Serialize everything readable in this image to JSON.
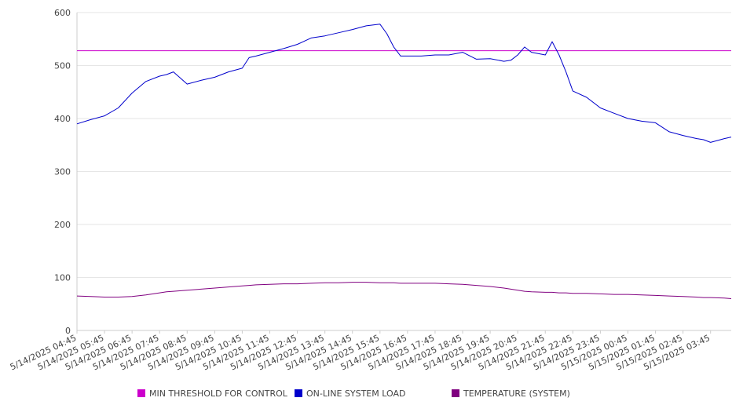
{
  "chart_data": {
    "type": "line",
    "ylim": [
      0,
      600
    ],
    "yticks": [
      0,
      100,
      200,
      300,
      400,
      500,
      600
    ],
    "grid": {
      "horizontal": true,
      "vertical": false
    },
    "legend_position": "bottom",
    "x_tick_labels": [
      "5/14/2025 04:45",
      "5/14/2025 05:45",
      "5/14/2025 06:45",
      "5/14/2025 07:45",
      "5/14/2025 08:45",
      "5/14/2025 09:45",
      "5/14/2025 10:45",
      "5/14/2025 11:45",
      "5/14/2025 12:45",
      "5/14/2025 13:45",
      "5/14/2025 14:45",
      "5/14/2025 15:45",
      "5/14/2025 16:45",
      "5/14/2025 17:45",
      "5/14/2025 18:45",
      "5/14/2025 19:45",
      "5/14/2025 20:45",
      "5/14/2025 21:45",
      "5/14/2025 22:45",
      "5/14/2025 23:45",
      "5/15/2025 00:45",
      "5/15/2025 01:45",
      "5/15/2025 02:45",
      "5/15/2025 03:45"
    ],
    "x": [
      "5/14/2025 04:45",
      "5/14/2025 05:15",
      "5/14/2025 05:45",
      "5/14/2025 06:15",
      "5/14/2025 06:45",
      "5/14/2025 07:15",
      "5/14/2025 07:45",
      "5/14/2025 08:00",
      "5/14/2025 08:15",
      "5/14/2025 08:45",
      "5/14/2025 09:15",
      "5/14/2025 09:45",
      "5/14/2025 10:15",
      "5/14/2025 10:45",
      "5/14/2025 11:00",
      "5/14/2025 11:15",
      "5/14/2025 11:45",
      "5/14/2025 12:15",
      "5/14/2025 12:45",
      "5/14/2025 13:15",
      "5/14/2025 13:45",
      "5/14/2025 14:15",
      "5/14/2025 14:45",
      "5/14/2025 15:15",
      "5/14/2025 15:45",
      "5/14/2025 16:00",
      "5/14/2025 16:15",
      "5/14/2025 16:30",
      "5/14/2025 16:45",
      "5/14/2025 17:15",
      "5/14/2025 17:45",
      "5/14/2025 18:15",
      "5/14/2025 18:45",
      "5/14/2025 19:15",
      "5/14/2025 19:45",
      "5/14/2025 20:15",
      "5/14/2025 20:30",
      "5/14/2025 20:45",
      "5/14/2025 21:00",
      "5/14/2025 21:15",
      "5/14/2025 21:45",
      "5/14/2025 22:00",
      "5/14/2025 22:15",
      "5/14/2025 22:30",
      "5/14/2025 22:45",
      "5/14/2025 23:15",
      "5/14/2025 23:45",
      "5/15/2025 00:15",
      "5/15/2025 00:45",
      "5/15/2025 01:15",
      "5/15/2025 01:45",
      "5/15/2025 02:15",
      "5/15/2025 02:45",
      "5/15/2025 03:15",
      "5/15/2025 03:30",
      "5/15/2025 03:45",
      "5/15/2025 04:15",
      "5/15/2025 04:30"
    ],
    "series": [
      {
        "name": "MIN THRESHOLD FOR CONTROL",
        "color": "#cc00cc",
        "values": [
          528,
          528,
          528,
          528,
          528,
          528,
          528,
          528,
          528,
          528,
          528,
          528,
          528,
          528,
          528,
          528,
          528,
          528,
          528,
          528,
          528,
          528,
          528,
          528,
          528,
          528,
          528,
          528,
          528,
          528,
          528,
          528,
          528,
          528,
          528,
          528,
          528,
          528,
          528,
          528,
          528,
          528,
          528,
          528,
          528,
          528,
          528,
          528,
          528,
          528,
          528,
          528,
          528,
          528,
          528,
          528,
          528,
          528
        ]
      },
      {
        "name": "ON-LINE SYSTEM LOAD",
        "color": "#0000cc",
        "values": [
          390,
          398,
          405,
          420,
          448,
          470,
          480,
          483,
          488,
          465,
          472,
          478,
          488,
          495,
          515,
          518,
          525,
          532,
          540,
          552,
          556,
          562,
          568,
          575,
          578,
          560,
          535,
          518,
          518,
          518,
          520,
          520,
          525,
          512,
          513,
          508,
          510,
          520,
          535,
          525,
          520,
          545,
          520,
          488,
          452,
          440,
          420,
          410,
          400,
          395,
          392,
          375,
          368,
          362,
          360,
          355,
          362,
          365
        ]
      },
      {
        "name": "TEMPERATURE (SYSTEM)",
        "color": "#800080",
        "values": [
          65,
          64,
          63,
          63,
          64,
          67,
          71,
          73,
          74,
          76,
          78,
          80,
          82,
          84,
          85,
          86,
          87,
          88,
          88,
          89,
          90,
          90,
          91,
          91,
          90,
          90,
          90,
          89,
          89,
          89,
          89,
          88,
          87,
          85,
          83,
          80,
          78,
          76,
          74,
          73,
          72,
          72,
          71,
          71,
          70,
          70,
          69,
          68,
          68,
          67,
          66,
          65,
          64,
          63,
          62,
          62,
          61,
          60
        ]
      }
    ]
  }
}
